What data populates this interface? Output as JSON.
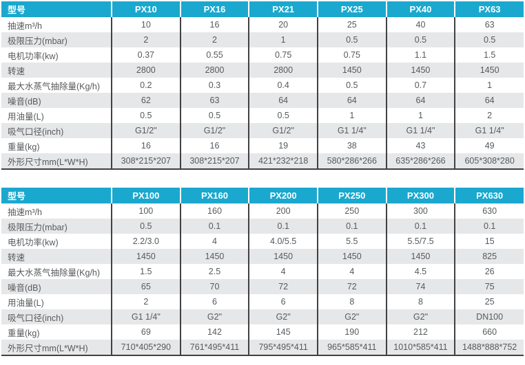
{
  "colors": {
    "accent": "#1BA8CE",
    "divider": "#414042",
    "stripe": "#E6E7E8",
    "body_text": "#58595B",
    "header_text": "#FFFFFF"
  },
  "tables": [
    {
      "name": "px-small-series-spec-table",
      "columns": [
        "型号",
        "PX10",
        "PX16",
        "PX21",
        "PX25",
        "PX40",
        "PX63"
      ],
      "rows": [
        {
          "label": "抽速m³/h",
          "values": [
            "10",
            "16",
            "20",
            "25",
            "40",
            "63"
          ]
        },
        {
          "label": "极限压力(mbar)",
          "values": [
            "2",
            "2",
            "1",
            "0.5",
            "0.5",
            "0.5"
          ]
        },
        {
          "label": "电机功率(kw)",
          "values": [
            "0.37",
            "0.55",
            "0.75",
            "0.75",
            "1.1",
            "1.5"
          ]
        },
        {
          "label": "转速",
          "values": [
            "2800",
            "2800",
            "2800",
            "1450",
            "1450",
            "1450"
          ]
        },
        {
          "label": "最大水蒸气抽除量(Kg/h)",
          "values": [
            "0.2",
            "0.3",
            "0.4",
            "0.5",
            "0.7",
            "1"
          ]
        },
        {
          "label": "噪音(dB)",
          "values": [
            "62",
            "63",
            "64",
            "64",
            "64",
            "64"
          ]
        },
        {
          "label": "用油量(L)",
          "values": [
            "0.5",
            "0.5",
            "0.5",
            "1",
            "1",
            "2"
          ]
        },
        {
          "label": "吸气口径(inch)",
          "values": [
            "G1/2\"",
            "G1/2\"",
            "G1/2\"",
            "G1 1/4\"",
            "G1 1/4\"",
            "G1 1/4\""
          ]
        },
        {
          "label": "重量(kg)",
          "values": [
            "16",
            "16",
            "19",
            "38",
            "43",
            "49"
          ]
        },
        {
          "label": "外形尺寸mm(L*W*H)",
          "values": [
            "308*215*207",
            "308*215*207",
            "421*232*218",
            "580*286*266",
            "635*286*266",
            "605*308*280"
          ]
        }
      ]
    },
    {
      "name": "px-large-series-spec-table",
      "columns": [
        "型号",
        "PX100",
        "PX160",
        "PX200",
        "PX250",
        "PX300",
        "PX630"
      ],
      "rows": [
        {
          "label": "抽速m³/h",
          "values": [
            "100",
            "160",
            "200",
            "250",
            "300",
            "630"
          ]
        },
        {
          "label": "极限压力(mbar)",
          "values": [
            "0.5",
            "0.1",
            "0.1",
            "0.1",
            "0.1",
            "0.1"
          ]
        },
        {
          "label": "电机功率(kw)",
          "values": [
            "2.2/3.0",
            "4",
            "4.0/5.5",
            "5.5",
            "5.5/7.5",
            "15"
          ]
        },
        {
          "label": "转速",
          "values": [
            "1450",
            "1450",
            "1450",
            "1450",
            "1450",
            "825"
          ]
        },
        {
          "label": "最大水蒸气抽除量(Kg/h)",
          "values": [
            "1.5",
            "2.5",
            "4",
            "4",
            "4.5",
            "26"
          ]
        },
        {
          "label": "噪音(dB)",
          "values": [
            "65",
            "70",
            "72",
            "72",
            "74",
            "75"
          ]
        },
        {
          "label": "用油量(L)",
          "values": [
            "2",
            "6",
            "6",
            "8",
            "8",
            "25"
          ]
        },
        {
          "label": "吸气口径(inch)",
          "values": [
            "G1 1/4\"",
            "G2\"",
            "G2\"",
            "G2\"",
            "G2\"",
            "DN100"
          ]
        },
        {
          "label": "重量(kg)",
          "values": [
            "69",
            "142",
            "145",
            "190",
            "212",
            "660"
          ]
        },
        {
          "label": "外形尺寸mm(L*W*H)",
          "values": [
            "710*405*290",
            "761*495*411",
            "795*495*411",
            "965*585*411",
            "1010*585*411",
            "1488*888*752"
          ]
        }
      ]
    }
  ]
}
